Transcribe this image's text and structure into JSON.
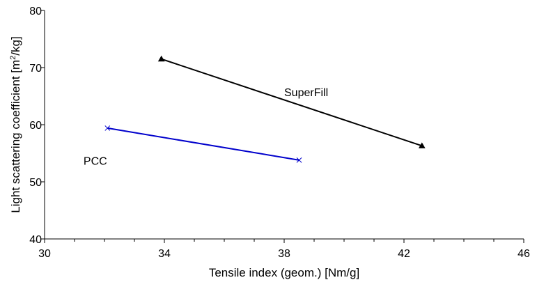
{
  "chart_data": {
    "type": "line",
    "xlabel": "Tensile index (geom.) [Nm/g]",
    "ylabel_parts": [
      "Light scattering coefficient [m",
      "2",
      "/kg]"
    ],
    "xlim": [
      30,
      46
    ],
    "ylim": [
      40,
      80
    ],
    "x_ticks": [
      30,
      34,
      38,
      42,
      46
    ],
    "x_minor_step": 1,
    "y_ticks": [
      40,
      50,
      60,
      70,
      80
    ],
    "grid": false,
    "series": [
      {
        "name": "SuperFill",
        "color": "#000000",
        "marker": "triangle",
        "points": [
          [
            33.9,
            71.5
          ],
          [
            42.6,
            56.3
          ]
        ],
        "label_anchor": [
          38.0,
          65.0
        ]
      },
      {
        "name": "PCC",
        "color": "#0000cc",
        "marker": "x",
        "points": [
          [
            32.1,
            59.4
          ],
          [
            38.5,
            53.8
          ]
        ],
        "label_anchor": [
          31.3,
          53.0
        ]
      }
    ]
  }
}
